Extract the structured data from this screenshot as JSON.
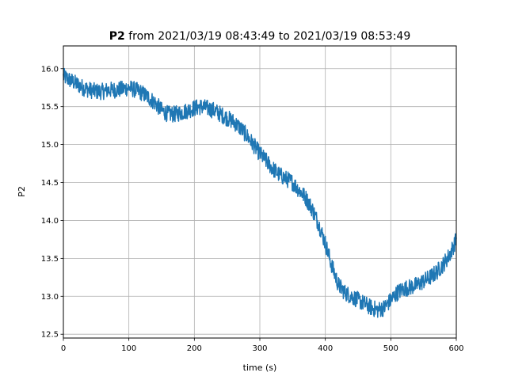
{
  "chart_data": {
    "type": "line",
    "title_bold": "P2",
    "title_rest": " from 2021/03/19 08:43:49 to 2021/03/19 08:53:49",
    "xlabel": "time (s)",
    "ylabel": "P2",
    "xlim": [
      0,
      600
    ],
    "ylim": [
      12.45,
      16.3
    ],
    "x_ticks": [
      0,
      100,
      200,
      300,
      400,
      500,
      600
    ],
    "x_tick_labels": [
      "0",
      "100",
      "200",
      "300",
      "400",
      "500",
      "600"
    ],
    "y_ticks": [
      12.5,
      13.0,
      13.5,
      14.0,
      14.5,
      15.0,
      15.5,
      16.0
    ],
    "y_tick_labels": [
      "12.5",
      "13.0",
      "13.5",
      "14.0",
      "14.5",
      "15.0",
      "15.5",
      "16.0"
    ],
    "grid": true,
    "series": [
      {
        "color": "#1f77b4",
        "x": [
          0,
          10,
          20,
          30,
          40,
          50,
          60,
          70,
          80,
          90,
          100,
          110,
          120,
          130,
          140,
          150,
          160,
          170,
          180,
          190,
          200,
          210,
          220,
          230,
          240,
          250,
          260,
          270,
          280,
          290,
          300,
          310,
          320,
          330,
          340,
          350,
          360,
          370,
          380,
          390,
          400,
          410,
          420,
          430,
          440,
          450,
          460,
          470,
          480,
          490,
          500,
          510,
          520,
          530,
          540,
          550,
          560,
          570,
          580,
          590,
          600
        ],
        "y": [
          15.9,
          15.85,
          15.8,
          15.75,
          15.72,
          15.7,
          15.7,
          15.72,
          15.72,
          15.73,
          15.75,
          15.72,
          15.68,
          15.62,
          15.55,
          15.45,
          15.4,
          15.4,
          15.42,
          15.45,
          15.48,
          15.5,
          15.48,
          15.45,
          15.4,
          15.35,
          15.3,
          15.22,
          15.12,
          15.0,
          14.88,
          14.78,
          14.68,
          14.6,
          14.55,
          14.5,
          14.4,
          14.3,
          14.15,
          13.95,
          13.7,
          13.4,
          13.15,
          13.05,
          13.0,
          12.95,
          12.9,
          12.85,
          12.82,
          12.85,
          12.95,
          13.05,
          13.1,
          13.12,
          13.15,
          13.2,
          13.25,
          13.32,
          13.42,
          13.55,
          13.75
        ],
        "noise": 0.11
      }
    ]
  }
}
